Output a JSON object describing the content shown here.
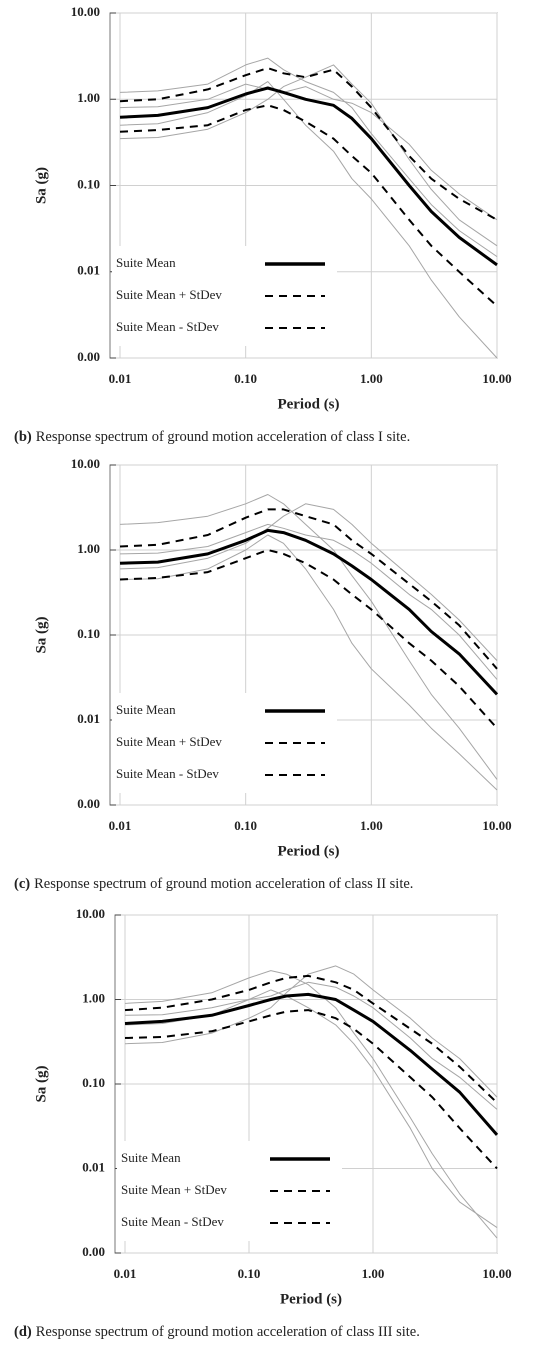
{
  "chart_data": [
    {
      "type": "line",
      "xlabel": "Period (s)",
      "ylabel": "Sa (g)",
      "xscale": "log",
      "yscale": "log",
      "grid": true,
      "legend": "lower left",
      "caption": {
        "label": "(b)",
        "text": "Response spectrum of ground motion acceleration of class I site."
      },
      "xlim": [
        0.01,
        10
      ],
      "xticks": [
        {
          "value": 0.01,
          "label": "0.01"
        },
        {
          "value": 0.1,
          "label": "0.10"
        },
        {
          "value": 1,
          "label": "1.00"
        },
        {
          "value": 10,
          "label": "10.00"
        }
      ],
      "ylim": [
        0.001,
        10
      ],
      "yticks": [
        {
          "value": 0.001,
          "label": "0.00"
        },
        {
          "value": 0.01,
          "label": "0.01"
        },
        {
          "value": 0.1,
          "label": "0.10"
        },
        {
          "value": 1,
          "label": "1.00"
        },
        {
          "value": 10,
          "label": "10.00"
        }
      ],
      "x": [
        0.01,
        0.02,
        0.05,
        0.1,
        0.15,
        0.2,
        0.3,
        0.5,
        0.7,
        1,
        2,
        3,
        5,
        10
      ],
      "series": [
        {
          "color": "#a6a6a6",
          "values": [
            1.2,
            1.25,
            1.5,
            2.5,
            3.0,
            2.2,
            1.6,
            1.2,
            0.8,
            0.4,
            0.12,
            0.06,
            0.03,
            0.015
          ]
        },
        {
          "color": "#a6a6a6",
          "values": [
            0.35,
            0.36,
            0.45,
            0.7,
            1.0,
            1.4,
            1.8,
            2.5,
            1.5,
            0.9,
            0.2,
            0.09,
            0.04,
            0.02
          ]
        },
        {
          "color": "#a6a6a6",
          "values": [
            0.5,
            0.52,
            0.7,
            1.1,
            1.6,
            1.0,
            0.5,
            0.25,
            0.12,
            0.07,
            0.02,
            0.008,
            0.003,
            0.001
          ]
        },
        {
          "color": "#a6a6a6",
          "values": [
            0.8,
            0.82,
            1.0,
            1.5,
            1.3,
            1.2,
            1.4,
            1.0,
            0.9,
            0.7,
            0.3,
            0.15,
            0.08,
            0.04
          ]
        },
        {
          "name": "Suite Mean",
          "color": "#000000",
          "dash": false,
          "values": [
            0.62,
            0.65,
            0.8,
            1.15,
            1.35,
            1.2,
            1.0,
            0.85,
            0.6,
            0.35,
            0.1,
            0.05,
            0.025,
            0.012
          ]
        },
        {
          "name": "Suite Mean + StDev",
          "color": "#000000",
          "dash": true,
          "values": [
            0.95,
            1.0,
            1.3,
            1.9,
            2.3,
            2.0,
            1.8,
            2.2,
            1.4,
            0.8,
            0.22,
            0.12,
            0.07,
            0.04
          ]
        },
        {
          "name": "Suite Mean - StDev",
          "color": "#000000",
          "dash": true,
          "values": [
            0.42,
            0.44,
            0.5,
            0.75,
            0.85,
            0.75,
            0.55,
            0.35,
            0.22,
            0.14,
            0.04,
            0.02,
            0.01,
            0.004
          ]
        }
      ]
    },
    {
      "type": "line",
      "xlabel": "Period (s)",
      "ylabel": "Sa (g)",
      "xscale": "log",
      "yscale": "log",
      "grid": true,
      "legend": "lower left",
      "caption": {
        "label": "(c)",
        "text": "Response spectrum of ground motion acceleration of class II site."
      },
      "xlim": [
        0.01,
        10
      ],
      "xticks": [
        {
          "value": 0.01,
          "label": "0.01"
        },
        {
          "value": 0.1,
          "label": "0.10"
        },
        {
          "value": 1,
          "label": "1.00"
        },
        {
          "value": 10,
          "label": "10.00"
        }
      ],
      "ylim": [
        0.001,
        10
      ],
      "yticks": [
        {
          "value": 0.001,
          "label": "0.00"
        },
        {
          "value": 0.01,
          "label": "0.01"
        },
        {
          "value": 0.1,
          "label": "0.10"
        },
        {
          "value": 1,
          "label": "1.00"
        },
        {
          "value": 10,
          "label": "10.00"
        }
      ],
      "x": [
        0.01,
        0.02,
        0.05,
        0.1,
        0.15,
        0.2,
        0.3,
        0.5,
        0.7,
        1,
        2,
        3,
        5,
        10
      ],
      "series": [
        {
          "color": "#a6a6a6",
          "values": [
            2.0,
            2.1,
            2.5,
            3.5,
            4.5,
            3.5,
            2.0,
            1.0,
            0.5,
            0.25,
            0.05,
            0.02,
            0.008,
            0.002
          ]
        },
        {
          "color": "#a6a6a6",
          "values": [
            0.6,
            0.62,
            0.8,
            1.2,
            1.8,
            2.5,
            3.5,
            3.0,
            2.0,
            1.2,
            0.5,
            0.3,
            0.15,
            0.05
          ]
        },
        {
          "color": "#a6a6a6",
          "values": [
            0.45,
            0.46,
            0.6,
            1.0,
            1.5,
            1.2,
            0.6,
            0.2,
            0.08,
            0.04,
            0.015,
            0.008,
            0.004,
            0.0015
          ]
        },
        {
          "color": "#a6a6a6",
          "values": [
            0.9,
            0.92,
            1.1,
            1.6,
            2.0,
            1.8,
            1.5,
            1.3,
            1.0,
            0.7,
            0.3,
            0.2,
            0.1,
            0.03
          ]
        },
        {
          "name": "Suite Mean",
          "color": "#000000",
          "dash": false,
          "values": [
            0.7,
            0.72,
            0.9,
            1.3,
            1.7,
            1.6,
            1.3,
            0.9,
            0.65,
            0.45,
            0.2,
            0.11,
            0.06,
            0.02
          ]
        },
        {
          "name": "Suite Mean + StDev",
          "color": "#000000",
          "dash": true,
          "values": [
            1.1,
            1.15,
            1.5,
            2.4,
            3.0,
            3.0,
            2.5,
            2.0,
            1.3,
            0.9,
            0.4,
            0.25,
            0.13,
            0.04
          ]
        },
        {
          "name": "Suite Mean - StDev",
          "color": "#000000",
          "dash": true,
          "values": [
            0.45,
            0.47,
            0.55,
            0.8,
            1.0,
            0.9,
            0.7,
            0.45,
            0.3,
            0.2,
            0.08,
            0.05,
            0.025,
            0.008
          ]
        }
      ]
    },
    {
      "type": "line",
      "xlabel": "Period (s)",
      "ylabel": "Sa (g)",
      "xscale": "log",
      "yscale": "log",
      "grid": true,
      "legend": "lower left",
      "caption": {
        "label": "(d)",
        "text": "Response spectrum of ground motion acceleration of class III site."
      },
      "xlim": [
        0.01,
        10
      ],
      "xticks": [
        {
          "value": 0.01,
          "label": "0.01"
        },
        {
          "value": 0.1,
          "label": "0.10"
        },
        {
          "value": 1,
          "label": "1.00"
        },
        {
          "value": 10,
          "label": "10.00"
        }
      ],
      "ylim": [
        0.001,
        10
      ],
      "yticks": [
        {
          "value": 0.001,
          "label": "0.00"
        },
        {
          "value": 0.01,
          "label": "0.01"
        },
        {
          "value": 0.1,
          "label": "0.10"
        },
        {
          "value": 1,
          "label": "1.00"
        },
        {
          "value": 10,
          "label": "10.00"
        }
      ],
      "x": [
        0.01,
        0.02,
        0.05,
        0.1,
        0.15,
        0.2,
        0.3,
        0.5,
        0.7,
        1,
        2,
        3,
        5,
        10
      ],
      "series": [
        {
          "color": "#a6a6a6",
          "values": [
            0.9,
            0.95,
            1.2,
            1.8,
            2.2,
            2.0,
            1.5,
            0.8,
            0.4,
            0.2,
            0.04,
            0.015,
            0.005,
            0.0015
          ]
        },
        {
          "color": "#a6a6a6",
          "values": [
            0.3,
            0.31,
            0.4,
            0.6,
            0.8,
            1.2,
            2.0,
            2.5,
            2.0,
            1.3,
            0.6,
            0.35,
            0.2,
            0.07
          ]
        },
        {
          "color": "#a6a6a6",
          "values": [
            0.5,
            0.52,
            0.65,
            1.0,
            1.3,
            1.1,
            0.8,
            0.5,
            0.3,
            0.15,
            0.03,
            0.01,
            0.004,
            0.002
          ]
        },
        {
          "color": "#a6a6a6",
          "values": [
            0.65,
            0.66,
            0.8,
            1.0,
            1.1,
            1.3,
            1.6,
            1.4,
            1.1,
            0.8,
            0.35,
            0.2,
            0.12,
            0.05
          ]
        },
        {
          "name": "Suite Mean",
          "color": "#000000",
          "dash": false,
          "values": [
            0.52,
            0.55,
            0.65,
            0.85,
            1.0,
            1.1,
            1.15,
            1.0,
            0.75,
            0.55,
            0.25,
            0.15,
            0.08,
            0.025
          ]
        },
        {
          "name": "Suite Mean + StDev",
          "color": "#000000",
          "dash": true,
          "values": [
            0.75,
            0.8,
            1.0,
            1.3,
            1.6,
            1.8,
            1.9,
            1.6,
            1.3,
            0.9,
            0.45,
            0.3,
            0.16,
            0.06
          ]
        },
        {
          "name": "Suite Mean - StDev",
          "color": "#000000",
          "dash": true,
          "values": [
            0.35,
            0.36,
            0.42,
            0.55,
            0.65,
            0.72,
            0.75,
            0.6,
            0.45,
            0.3,
            0.12,
            0.07,
            0.03,
            0.01
          ]
        }
      ]
    }
  ]
}
